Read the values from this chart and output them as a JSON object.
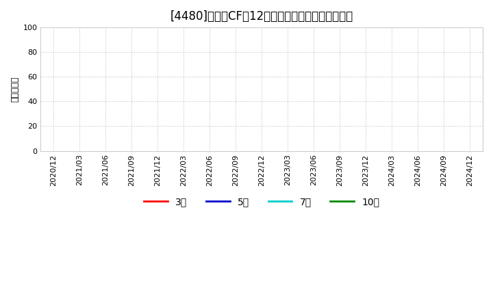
{
  "title": "[4480]　投賄CFの12か月移動合計の平均値の推移",
  "ylabel": "（百万円）",
  "ylim": [
    0,
    100
  ],
  "yticks": [
    0,
    20,
    40,
    60,
    80,
    100
  ],
  "xtick_labels": [
    "2020/12",
    "2021/03",
    "2021/06",
    "2021/09",
    "2021/12",
    "2022/03",
    "2022/06",
    "2022/09",
    "2022/12",
    "2023/03",
    "2023/06",
    "2023/09",
    "2023/12",
    "2024/03",
    "2024/06",
    "2024/09",
    "2024/12"
  ],
  "legend_labels": [
    "3年",
    "5年",
    "7年",
    "10年"
  ],
  "legend_colors": [
    "#ff0000",
    "#0000cc",
    "#00cccc",
    "#008800"
  ],
  "background_color": "#ffffff",
  "grid_color": "#bbbbbb",
  "title_fontsize": 12,
  "axis_fontsize": 8,
  "ylabel_fontsize": 9,
  "legend_fontsize": 10
}
